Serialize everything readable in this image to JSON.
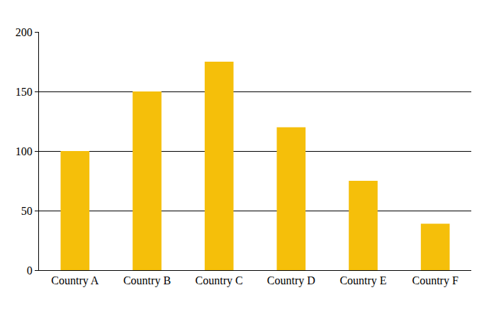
{
  "chart_data": {
    "type": "bar",
    "categories": [
      "Country A",
      "Country B",
      "Country C",
      "Country D",
      "Country E",
      "Country F"
    ],
    "values": [
      100,
      150,
      175,
      120,
      75,
      39
    ],
    "color": "#f5bf0a",
    "ylim": [
      0,
      200
    ],
    "yticks": [
      0,
      50,
      100,
      150,
      200
    ],
    "grid": true
  }
}
